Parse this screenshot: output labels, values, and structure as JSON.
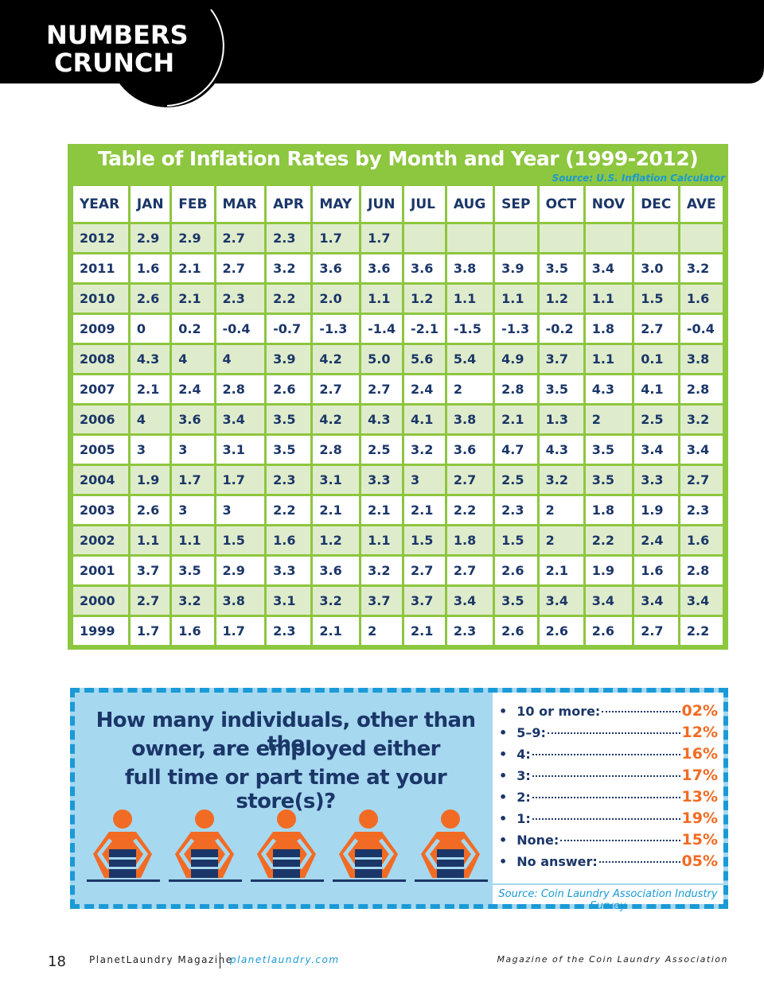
{
  "header": {
    "logo": [
      "NUMBERS",
      "CRUNCH"
    ]
  },
  "table": {
    "title": "Table of Inflation Rates by Month and Year (1999-2012)",
    "source": "Source: U.S. Inflation Calculator",
    "columns": [
      "YEAR",
      "JAN",
      "FEB",
      "MAR",
      "APR",
      "MAY",
      "JUN",
      "JUL",
      "AUG",
      "SEP",
      "OCT",
      "NOV",
      "DEC",
      "AVE"
    ],
    "rows": [
      [
        "2012",
        "2.9",
        "2.9",
        "2.7",
        "2.3",
        "1.7",
        "1.7"
      ],
      [
        "2011",
        "1.6",
        "2.1",
        "2.7",
        "3.2",
        "3.6",
        "3.6",
        "3.6",
        "3.8",
        "3.9",
        "3.5",
        "3.4",
        "3.0",
        "3.2"
      ],
      [
        "2010",
        "2.6",
        "2.1",
        "2.3",
        "2.2",
        "2.0",
        "1.1",
        "1.2",
        "1.1",
        "1.1",
        "1.2",
        "1.1",
        "1.5",
        "1.6"
      ],
      [
        "2009",
        "0",
        "0.2",
        "-0.4",
        "-0.7",
        "-1.3",
        "-1.4",
        "-2.1",
        "-1.5",
        "-1.3",
        "-0.2",
        "1.8",
        "2.7",
        "-0.4"
      ],
      [
        "2008",
        "4.3",
        "4",
        "4",
        "3.9",
        "4.2",
        "5.0",
        "5.6",
        "5.4",
        "4.9",
        "3.7",
        "1.1",
        "0.1",
        "3.8"
      ],
      [
        "2007",
        "2.1",
        "2.4",
        "2.8",
        "2.6",
        "2.7",
        "2.7",
        "2.4",
        "2",
        "2.8",
        "3.5",
        "4.3",
        "4.1",
        "2.8"
      ],
      [
        "2006",
        "4",
        "3.6",
        "3.4",
        "3.5",
        "4.2",
        "4.3",
        "4.1",
        "3.8",
        "2.1",
        "1.3",
        "2",
        "2.5",
        "3.2"
      ],
      [
        "2005",
        "3",
        "3",
        "3.1",
        "3.5",
        "2.8",
        "2.5",
        "3.2",
        "3.6",
        "4.7",
        "4.3",
        "3.5",
        "3.4",
        "3.4"
      ],
      [
        "2004",
        "1.9",
        "1.7",
        "1.7",
        "2.3",
        "3.1",
        "3.3",
        "3",
        "2.7",
        "2.5",
        "3.2",
        "3.5",
        "3.3",
        "2.7"
      ],
      [
        "2003",
        "2.6",
        "3",
        "3",
        "2.2",
        "2.1",
        "2.1",
        "2.1",
        "2.2",
        "2.3",
        "2",
        "1.8",
        "1.9",
        "2.3"
      ],
      [
        "2002",
        "1.1",
        "1.1",
        "1.5",
        "1.6",
        "1.2",
        "1.1",
        "1.5",
        "1.8",
        "1.5",
        "2",
        "2.2",
        "2.4",
        "1.6"
      ],
      [
        "2001",
        "3.7",
        "3.5",
        "2.9",
        "3.3",
        "3.6",
        "3.2",
        "2.7",
        "2.7",
        "2.6",
        "2.1",
        "1.9",
        "1.6",
        "2.8"
      ],
      [
        "2000",
        "2.7",
        "3.2",
        "3.8",
        "3.1",
        "3.2",
        "3.7",
        "3.7",
        "3.4",
        "3.5",
        "3.4",
        "3.4",
        "3.4",
        "3.4"
      ],
      [
        "1999",
        "1.7",
        "1.6",
        "1.7",
        "2.3",
        "2.1",
        "2",
        "2.1",
        "2.3",
        "2.6",
        "2.6",
        "2.6",
        "2.7",
        "2.2"
      ]
    ]
  },
  "survey": {
    "question": [
      "How many individuals, other than the",
      "owner, are employed either",
      "full time or part time at your store(s)?"
    ],
    "items": [
      {
        "label": "10 or more:",
        "value": "02%"
      },
      {
        "label": "5–9:",
        "value": "12%"
      },
      {
        "label": "4:",
        "value": "16%"
      },
      {
        "label": "3:",
        "value": "17%"
      },
      {
        "label": "2:",
        "value": "13%"
      },
      {
        "label": "1:",
        "value": "19%"
      },
      {
        "label": "None:",
        "value": "15%"
      },
      {
        "label": "No answer:",
        "value": "05%"
      }
    ],
    "source": "Source: Coin Laundry Association Industry Survey"
  },
  "footer": {
    "page": "18",
    "magazine": "PlanetLaundry Magazine",
    "url": "planetlaundry.com",
    "tagline": "Magazine of the Coin Laundry Association"
  }
}
